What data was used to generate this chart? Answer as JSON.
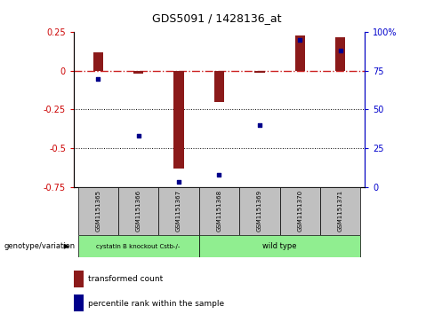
{
  "title": "GDS5091 / 1428136_at",
  "samples": [
    "GSM1151365",
    "GSM1151366",
    "GSM1151367",
    "GSM1151368",
    "GSM1151369",
    "GSM1151370",
    "GSM1151371"
  ],
  "red_bars": [
    0.12,
    -0.02,
    -0.63,
    -0.2,
    -0.01,
    0.23,
    0.22
  ],
  "blue_dots": [
    70,
    33,
    3,
    8,
    40,
    95,
    88
  ],
  "ylim_left": [
    -0.75,
    0.25
  ],
  "ylim_right": [
    0,
    100
  ],
  "yticks_left": [
    -0.75,
    -0.5,
    -0.25,
    0,
    0.25
  ],
  "yticks_right": [
    0,
    25,
    50,
    75,
    100
  ],
  "ytick_labels_left": [
    "-0.75",
    "-0.5",
    "-0.25",
    "0",
    "0.25"
  ],
  "ytick_labels_right": [
    "0",
    "25",
    "50",
    "75",
    "100%"
  ],
  "hlines": [
    -0.25,
    -0.5
  ],
  "red_color": "#8B1A1A",
  "blue_color": "#00008B",
  "dashed_line_color": "#CC2222",
  "group1_label": "cystatin B knockout Cstb-/-",
  "group2_label": "wild type",
  "group1_count": 3,
  "group2_count": 4,
  "group_color": "#90EE90",
  "legend1_label": "transformed count",
  "legend2_label": "percentile rank within the sample",
  "genotype_label": "genotype/variation",
  "bar_width": 0.25,
  "bg_color": "#FFFFFF",
  "tick_label_color_left": "#CC0000",
  "tick_label_color_right": "#0000CC",
  "title_fontsize": 9,
  "tick_fontsize": 7,
  "label_fontsize": 6,
  "sample_fontsize": 5
}
